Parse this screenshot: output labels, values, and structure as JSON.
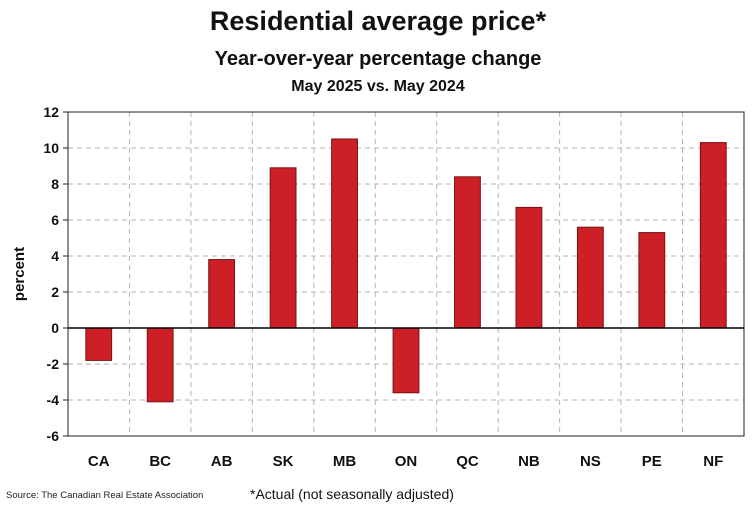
{
  "chart_data": {
    "type": "bar",
    "title": "Residential average price*",
    "subtitle": "Year-over-year percentage change",
    "subtitle2": "May 2025 vs. May 2024",
    "categories": [
      "CA",
      "BC",
      "AB",
      "SK",
      "MB",
      "ON",
      "QC",
      "NB",
      "NS",
      "PE",
      "NF"
    ],
    "values": [
      -1.8,
      -4.1,
      3.8,
      8.9,
      10.5,
      -3.6,
      8.4,
      6.7,
      5.6,
      5.3,
      10.3
    ],
    "xlabel": "",
    "ylabel": "percent",
    "ylim": [
      -6,
      12
    ],
    "yticks": [
      "-6",
      "-4",
      "-2",
      "0",
      "2",
      "4",
      "6",
      "8",
      "10",
      "12"
    ],
    "grid": true,
    "bar_color": "#cc1f26",
    "bar_edge_color": "#7a0f12",
    "source": "Source: The Canadian Real Estate Association",
    "footnote": "*Actual (not seasonally adjusted)"
  }
}
